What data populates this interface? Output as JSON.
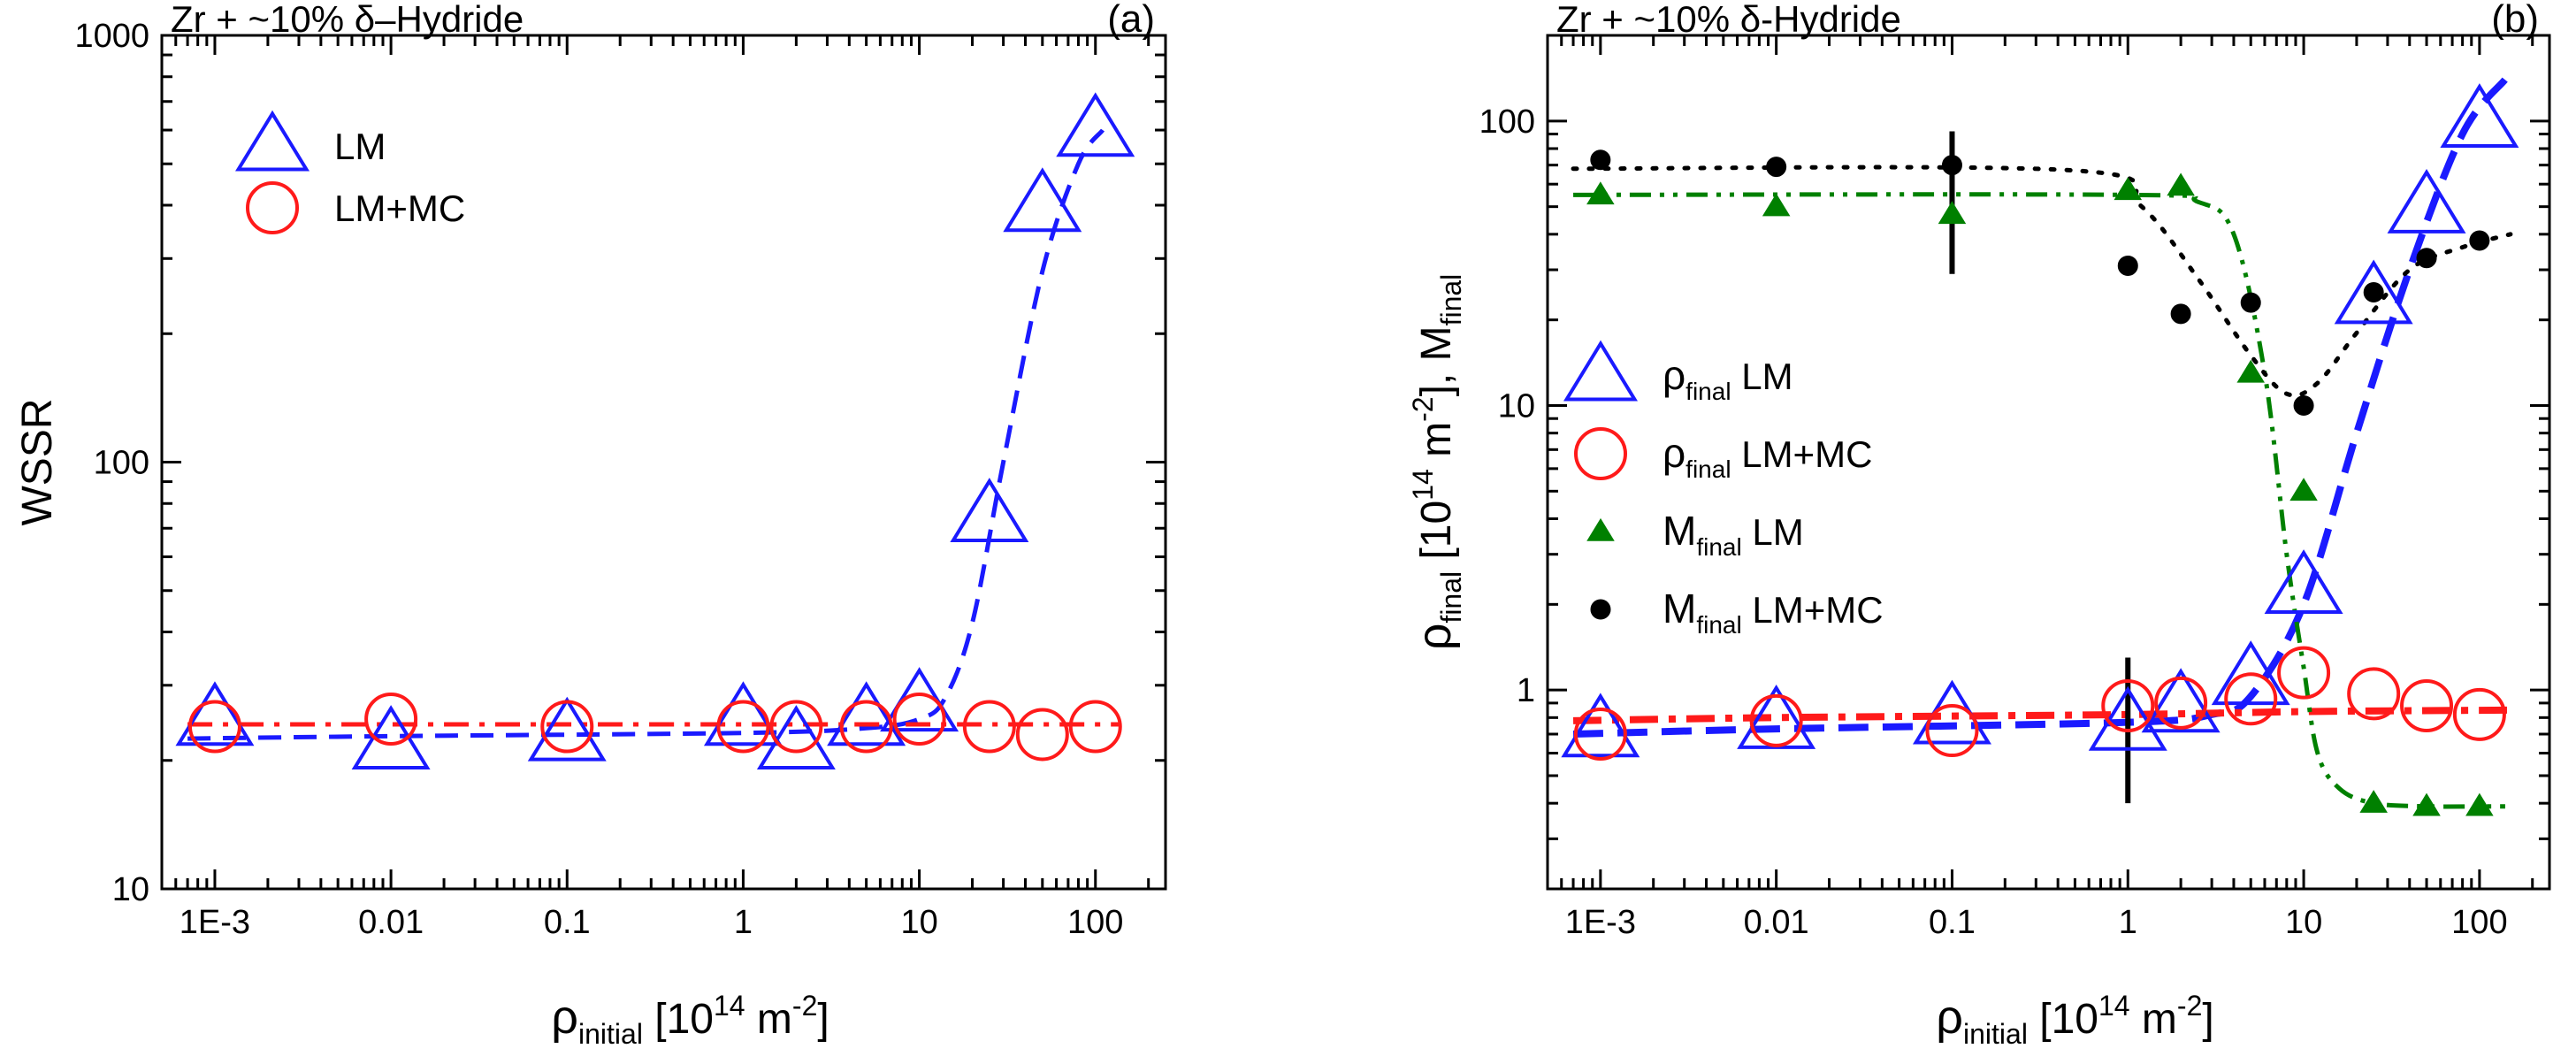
{
  "chart_data": [
    {
      "type": "scatter",
      "panel": "(a)",
      "title": "Zr + ~10% δ–Hydride",
      "xlabel": {
        "main": "ρ",
        "sub": "initial",
        "unit": "[10",
        "sup": "14",
        "unit_tail": " m",
        "sup2": "-2",
        "close": "]"
      },
      "ylabel": "WSSR",
      "xscale": "log",
      "yscale": "log",
      "xlim": [
        0.0005,
        250
      ],
      "ylim": [
        10,
        1000
      ],
      "xticks": [
        0.001,
        0.01,
        0.1,
        1,
        10,
        100
      ],
      "xtick_labels": [
        "1E-3",
        "0.01",
        "0.1",
        "1",
        "10",
        "100"
      ],
      "yticks": [
        10,
        100,
        1000
      ],
      "ytick_labels": [
        "10",
        "100",
        "1000"
      ],
      "legend_position": "top-left",
      "series": [
        {
          "name": "LM",
          "marker": "triangle-open",
          "color": "#1a1aff",
          "x": [
            0.001,
            0.01,
            0.1,
            1,
            2,
            5,
            10,
            25,
            50,
            100
          ],
          "y": [
            25,
            22,
            23,
            25,
            22,
            25,
            27,
            75,
            400,
            600
          ]
        },
        {
          "name": "LM+MC",
          "marker": "circle-open",
          "color": "#ff1a1a",
          "x": [
            0.001,
            0.01,
            0.1,
            1,
            2,
            5,
            10,
            25,
            50,
            100
          ],
          "y": [
            24,
            25,
            24,
            24,
            24,
            24,
            25,
            24,
            23,
            24
          ]
        }
      ],
      "fits": [
        {
          "color": "#1a1aff",
          "dash": "dash",
          "x": [
            0.0007,
            0.01,
            1,
            5,
            10,
            14,
            20,
            30,
            50,
            80,
            110
          ],
          "y": [
            22.5,
            22.8,
            23.2,
            23.8,
            25,
            28,
            42,
            100,
            280,
            500,
            600
          ]
        },
        {
          "color": "#ff1a1a",
          "dash": "dashdot",
          "x": [
            0.0007,
            140
          ],
          "y": [
            24.3,
            24.3
          ]
        }
      ]
    },
    {
      "type": "scatter",
      "panel": "(b)",
      "title": "Zr + ~10% δ-Hydride",
      "xlabel": {
        "main": "ρ",
        "sub": "initial",
        "unit": "[10",
        "sup": "14",
        "unit_tail": " m",
        "sup2": "-2",
        "close": "]"
      },
      "ylabel": {
        "rho": "ρ",
        "rho_sub": "final",
        "unit": "[10",
        "sup": "14",
        "unit_tail": " m",
        "sup2": "-2",
        "close": "],",
        "m": "M",
        "m_sub": "final"
      },
      "xscale": "log",
      "yscale": "log",
      "xlim": [
        0.0005,
        250
      ],
      "ylim": [
        0.2,
        200
      ],
      "xticks": [
        0.001,
        0.01,
        0.1,
        1,
        10,
        100
      ],
      "xtick_labels": [
        "1E-3",
        "0.01",
        "0.1",
        "1",
        "10",
        "100"
      ],
      "yticks": [
        1,
        10,
        100
      ],
      "ytick_labels": [
        "1",
        "10",
        "100"
      ],
      "legend_position": "center-left",
      "series": [
        {
          "name": "ρ",
          "name_sub": "final",
          "name_tail": "LM",
          "marker": "triangle-open",
          "color": "#1a1aff",
          "x": [
            0.001,
            0.01,
            0.1,
            1,
            2,
            5,
            10,
            25,
            50,
            100
          ],
          "y": [
            0.72,
            0.77,
            0.8,
            0.76,
            0.88,
            1.1,
            2.3,
            24,
            50,
            100
          ]
        },
        {
          "name": "ρ",
          "name_sub": "final",
          "name_tail": "LM+MC",
          "marker": "circle-open",
          "color": "#ff1a1a",
          "x": [
            0.001,
            0.01,
            0.1,
            1,
            2,
            5,
            10,
            25,
            50,
            100
          ],
          "y": [
            0.7,
            0.78,
            0.72,
            0.88,
            0.9,
            0.93,
            1.15,
            0.97,
            0.88,
            0.82
          ]
        },
        {
          "name": "M",
          "name_sub": "final",
          "name_tail": "LM",
          "marker": "triangle-filled",
          "color": "#008000",
          "x": [
            0.001,
            0.01,
            0.1,
            1,
            2,
            5,
            10,
            25,
            50,
            100
          ],
          "y": [
            55,
            50,
            47,
            57,
            59,
            13,
            5,
            0.4,
            0.39,
            0.39
          ]
        },
        {
          "name": "M",
          "name_sub": "final",
          "name_tail": "LM+MC",
          "marker": "circle-filled",
          "color": "#000000",
          "x": [
            0.001,
            0.01,
            0.1,
            1,
            2,
            5,
            10,
            25,
            50,
            100
          ],
          "y": [
            73,
            69,
            70,
            31,
            21,
            23,
            10,
            25,
            33,
            38
          ]
        }
      ],
      "error_bars": [
        {
          "x": 0.1,
          "y_low": 29,
          "y_high": 92,
          "color": "#000000"
        },
        {
          "x": 1,
          "y_low": 0.4,
          "y_high": 1.3,
          "color": "#000000"
        }
      ],
      "fits": [
        {
          "color": "#1a1aff",
          "dash": "dash-thick",
          "x": [
            0.0007,
            0.01,
            1,
            3,
            5,
            10,
            20,
            40,
            80,
            140
          ],
          "y": [
            0.7,
            0.73,
            0.77,
            0.82,
            0.95,
            2.0,
            8,
            30,
            90,
            140
          ]
        },
        {
          "color": "#ff1a1a",
          "dash": "dashdot-thick",
          "x": [
            0.0007,
            0.01,
            1,
            10,
            150
          ],
          "y": [
            0.78,
            0.8,
            0.82,
            0.84,
            0.85
          ]
        },
        {
          "color": "#008000",
          "dash": "dashdotdot",
          "x": [
            0.0007,
            1,
            2.5,
            4,
            6,
            8,
            10,
            12,
            16,
            25,
            50,
            100,
            140
          ],
          "y": [
            55,
            55,
            52,
            40,
            13,
            3,
            1.2,
            0.6,
            0.45,
            0.4,
            0.39,
            0.39,
            0.39
          ]
        },
        {
          "color": "#000000",
          "dash": "dot",
          "x": [
            0.0007,
            0.5,
            1.2,
            2.5,
            5,
            8,
            12,
            20,
            40,
            80,
            150
          ],
          "y": [
            68,
            67,
            50,
            28,
            15,
            11,
            12,
            18,
            30,
            36,
            40
          ]
        }
      ]
    }
  ]
}
